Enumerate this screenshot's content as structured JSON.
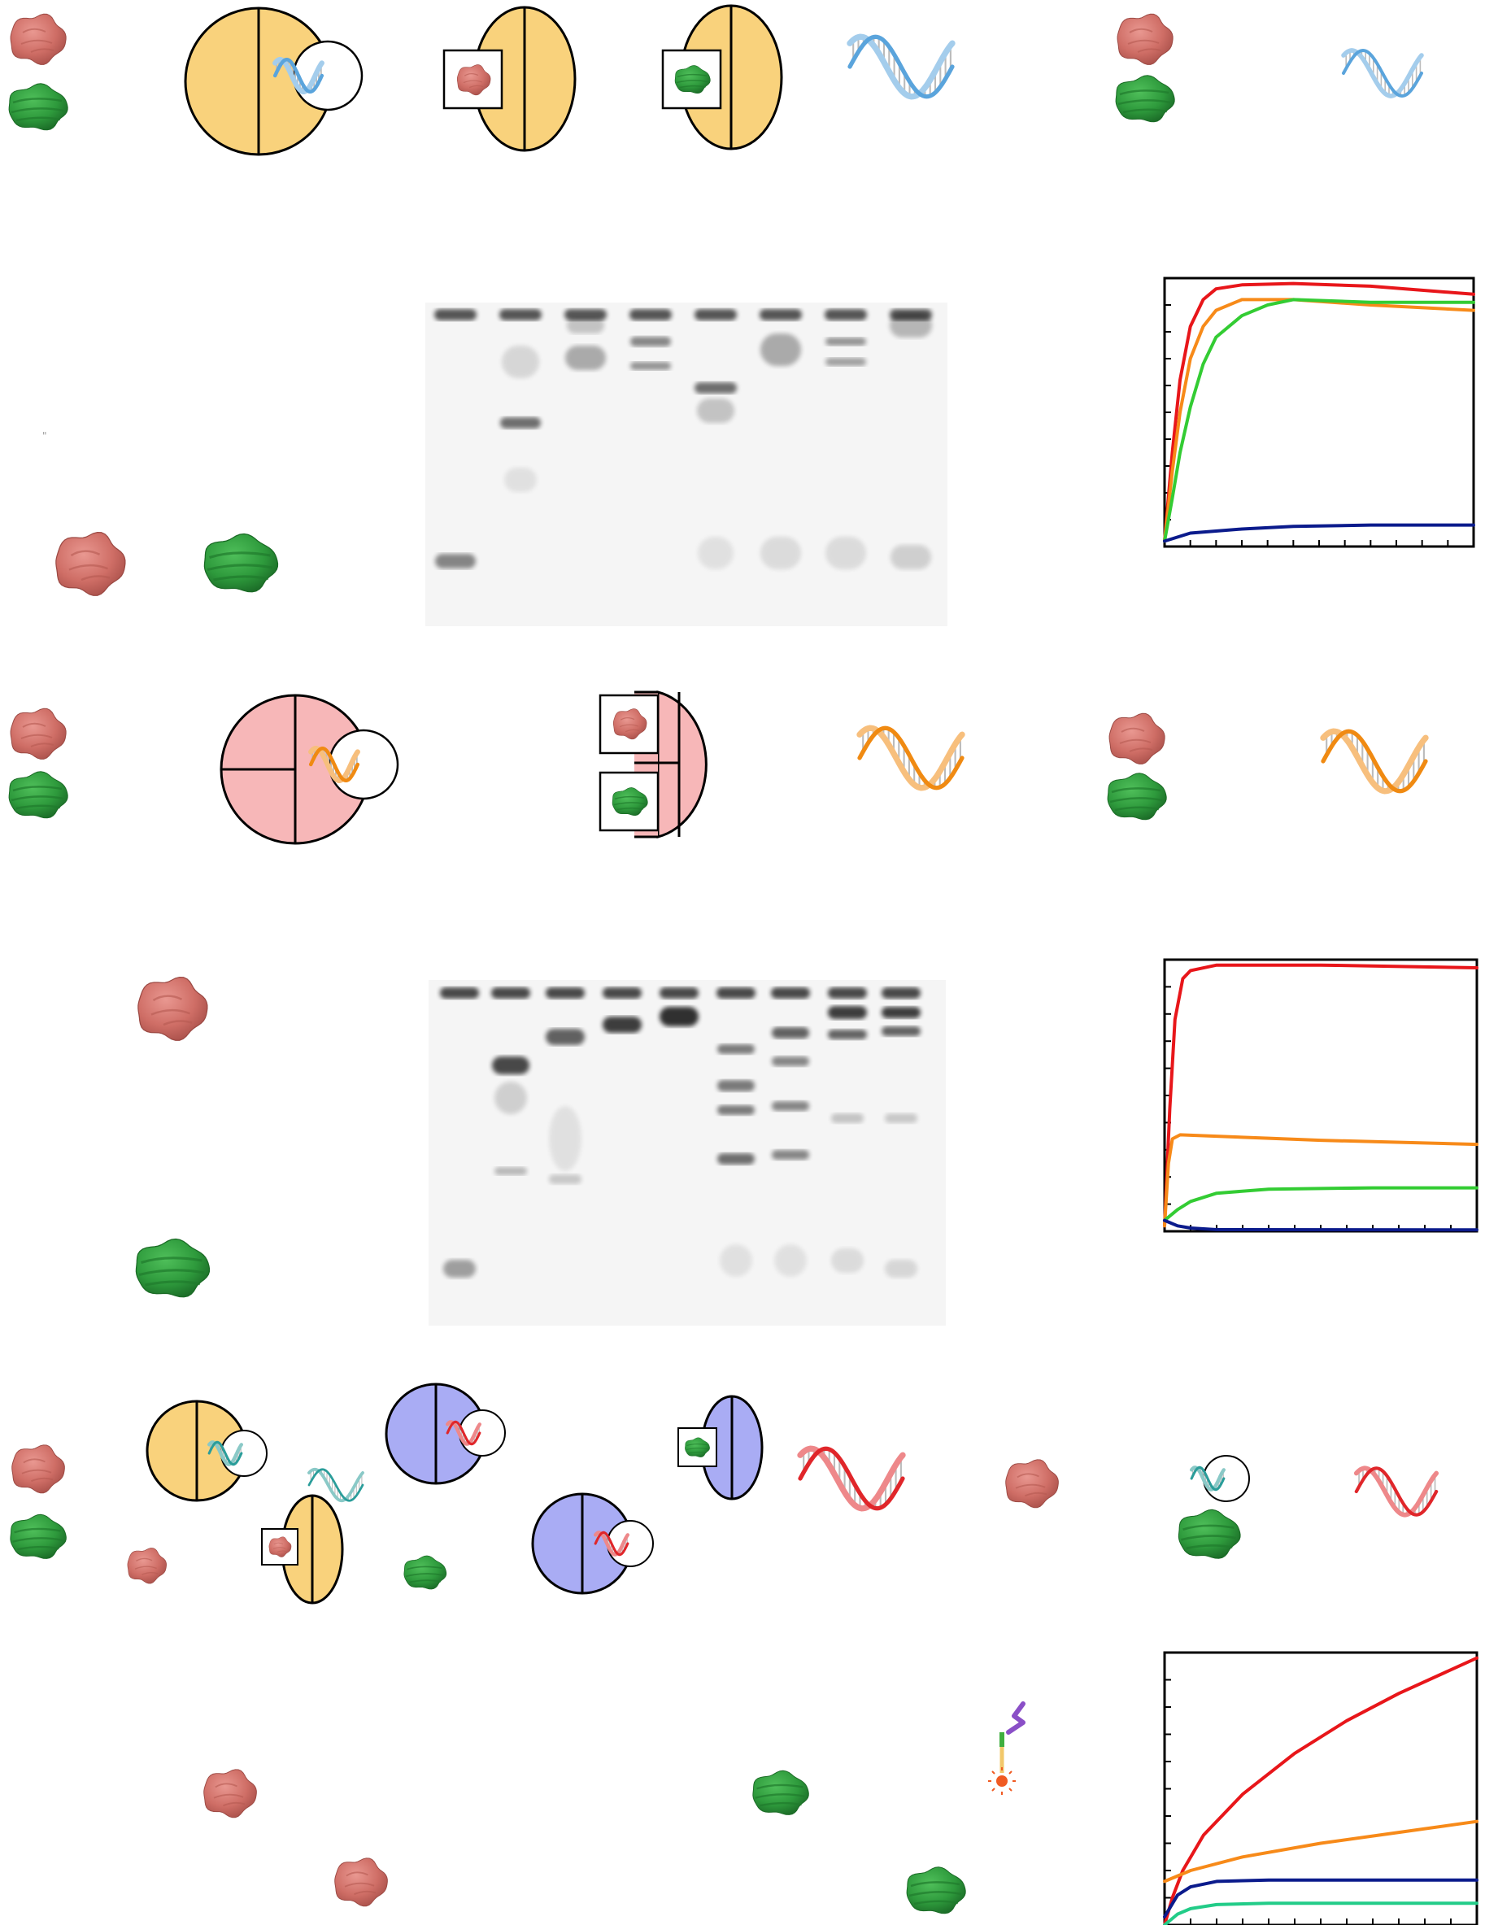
{
  "figure": {
    "colors": {
      "protein_a": "#cf6e66",
      "protein_b": "#2e9a3c",
      "ring_yellow": "#f9d27c",
      "ring_pink": "#f7b7b8",
      "ring_blue": "#a9acf4",
      "dna_blue": "#5aa4dc",
      "dna_orange": "#f08a12",
      "dna_red": "#e0262a",
      "dna_teal": "#2a9d9a",
      "curve_red": "#e8161a",
      "curve_orange": "#f78a19",
      "curve_green": "#33cc33",
      "curve_navy": "#0b1b8c",
      "curve_teal": "#22cc88"
    },
    "stray_mark": "\"",
    "icons": [
      "protein-a-icon",
      "protein-b-icon",
      "split-ring-icon",
      "dna-helix-icon",
      "gel-image",
      "linker-probe-icon"
    ],
    "gel_1": {
      "lanes": 8
    },
    "gel_2": {
      "lanes": 9
    }
  },
  "chart_data": [
    {
      "type": "line",
      "title": "",
      "xlabel": "",
      "ylabel": "",
      "xlim": [
        0,
        12
      ],
      "ylim": [
        0,
        1
      ],
      "grid": false,
      "x_ticks": 12,
      "y_ticks": 10,
      "series": [
        {
          "color": "#e8161a",
          "points": [
            [
              0,
              0.02
            ],
            [
              0.3,
              0.35
            ],
            [
              0.6,
              0.62
            ],
            [
              1,
              0.82
            ],
            [
              1.5,
              0.92
            ],
            [
              2,
              0.96
            ],
            [
              3,
              0.975
            ],
            [
              5,
              0.98
            ],
            [
              8,
              0.97
            ],
            [
              12,
              0.94
            ]
          ]
        },
        {
          "color": "#f78a19",
          "points": [
            [
              0,
              0.02
            ],
            [
              0.3,
              0.28
            ],
            [
              0.6,
              0.5
            ],
            [
              1,
              0.7
            ],
            [
              1.5,
              0.82
            ],
            [
              2,
              0.88
            ],
            [
              3,
              0.92
            ],
            [
              5,
              0.92
            ],
            [
              8,
              0.9
            ],
            [
              12,
              0.88
            ]
          ]
        },
        {
          "color": "#33cc33",
          "points": [
            [
              0,
              0.02
            ],
            [
              0.3,
              0.18
            ],
            [
              0.6,
              0.35
            ],
            [
              1,
              0.52
            ],
            [
              1.5,
              0.68
            ],
            [
              2,
              0.78
            ],
            [
              3,
              0.86
            ],
            [
              4,
              0.9
            ],
            [
              5,
              0.92
            ],
            [
              8,
              0.91
            ],
            [
              12,
              0.91
            ]
          ]
        },
        {
          "color": "#0b1b8c",
          "points": [
            [
              0,
              0.02
            ],
            [
              1,
              0.05
            ],
            [
              3,
              0.065
            ],
            [
              5,
              0.075
            ],
            [
              8,
              0.08
            ],
            [
              12,
              0.08
            ]
          ]
        }
      ]
    },
    {
      "type": "line",
      "title": "",
      "xlabel": "",
      "ylabel": "",
      "xlim": [
        0,
        12
      ],
      "ylim": [
        0,
        1
      ],
      "grid": false,
      "x_ticks": 12,
      "y_ticks": 10,
      "series": [
        {
          "color": "#e8161a",
          "points": [
            [
              0,
              0.02
            ],
            [
              0.2,
              0.45
            ],
            [
              0.4,
              0.78
            ],
            [
              0.7,
              0.93
            ],
            [
              1,
              0.96
            ],
            [
              2,
              0.98
            ],
            [
              6,
              0.98
            ],
            [
              12,
              0.97
            ]
          ]
        },
        {
          "color": "#f78a19",
          "points": [
            [
              0,
              0.02
            ],
            [
              0.15,
              0.25
            ],
            [
              0.3,
              0.34
            ],
            [
              0.6,
              0.355
            ],
            [
              2,
              0.35
            ],
            [
              6,
              0.335
            ],
            [
              12,
              0.32
            ]
          ]
        },
        {
          "color": "#33cc33",
          "points": [
            [
              0,
              0.04
            ],
            [
              0.5,
              0.08
            ],
            [
              1,
              0.11
            ],
            [
              2,
              0.14
            ],
            [
              4,
              0.155
            ],
            [
              8,
              0.16
            ],
            [
              12,
              0.16
            ]
          ]
        },
        {
          "color": "#0b1b8c",
          "points": [
            [
              0,
              0.04
            ],
            [
              0.5,
              0.02
            ],
            [
              1,
              0.012
            ],
            [
              2,
              0.006
            ],
            [
              12,
              0.005
            ]
          ]
        }
      ]
    },
    {
      "type": "line",
      "title": "",
      "xlabel": "",
      "ylabel": "",
      "xlim": [
        0,
        12
      ],
      "ylim": [
        0,
        1
      ],
      "grid": false,
      "x_ticks": 12,
      "y_ticks": 10,
      "series": [
        {
          "color": "#e8161a",
          "points": [
            [
              0,
              0.0
            ],
            [
              0.3,
              0.1
            ],
            [
              0.7,
              0.2
            ],
            [
              1.5,
              0.33
            ],
            [
              3,
              0.48
            ],
            [
              5,
              0.63
            ],
            [
              7,
              0.75
            ],
            [
              9,
              0.85
            ],
            [
              12,
              0.98
            ]
          ]
        },
        {
          "color": "#f78a19",
          "points": [
            [
              0,
              0.16
            ],
            [
              1,
              0.2
            ],
            [
              3,
              0.25
            ],
            [
              6,
              0.3
            ],
            [
              9,
              0.34
            ],
            [
              12,
              0.38
            ]
          ]
        },
        {
          "color": "#0b1b8c",
          "points": [
            [
              0,
              0.03
            ],
            [
              0.5,
              0.11
            ],
            [
              1,
              0.14
            ],
            [
              2,
              0.16
            ],
            [
              4,
              0.165
            ],
            [
              8,
              0.165
            ],
            [
              12,
              0.165
            ]
          ]
        },
        {
          "color": "#22cc88",
          "points": [
            [
              0,
              0.0
            ],
            [
              0.5,
              0.04
            ],
            [
              1,
              0.06
            ],
            [
              2,
              0.075
            ],
            [
              4,
              0.08
            ],
            [
              8,
              0.08
            ],
            [
              12,
              0.08
            ]
          ]
        }
      ]
    }
  ]
}
